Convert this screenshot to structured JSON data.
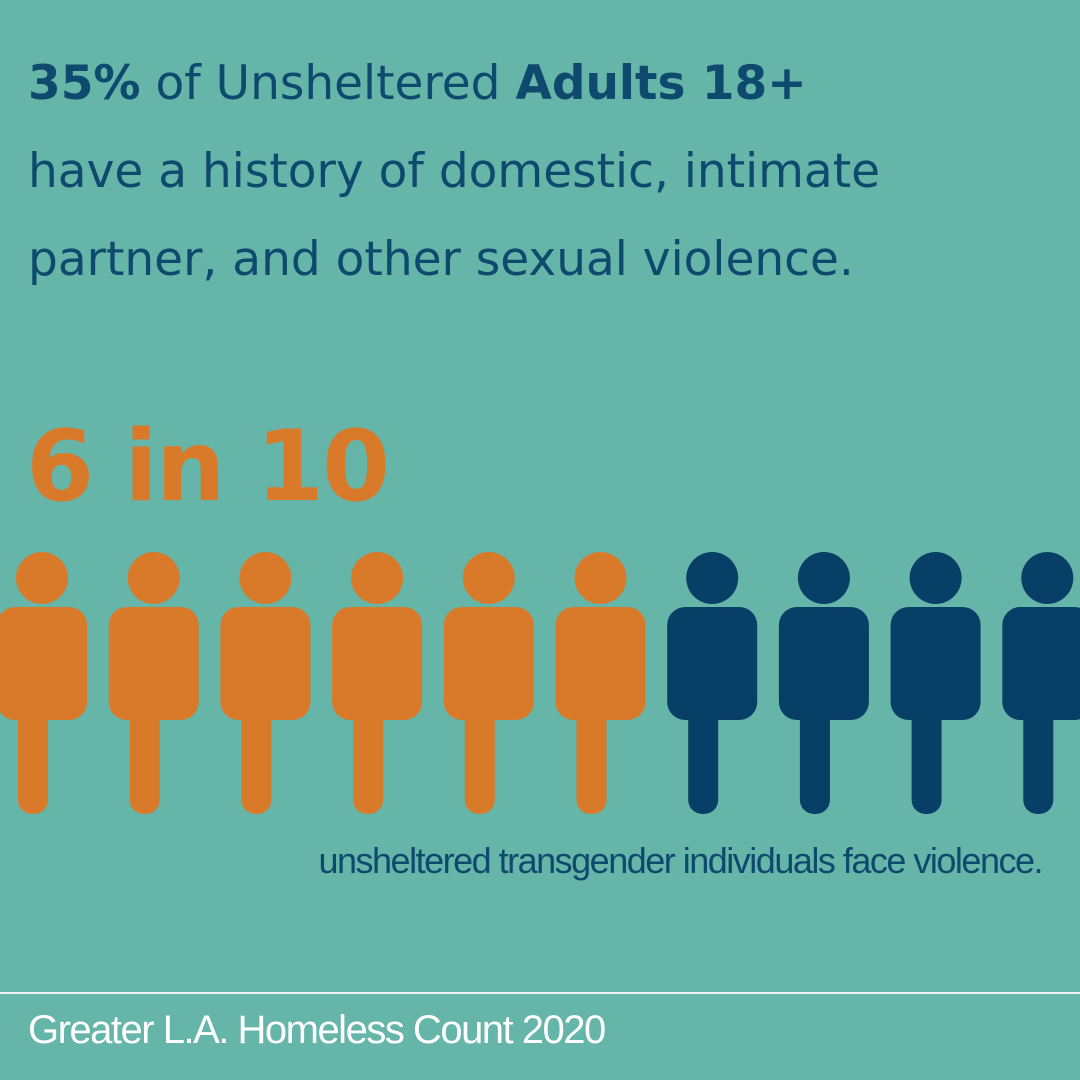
{
  "headline": {
    "lines": [
      [
        {
          "text": "35%",
          "bold": true
        },
        {
          "text": " of Unsheltered "
        },
        {
          "text": "Adults 18+",
          "bold": true
        }
      ],
      [
        {
          "text": "have a history of domestic, intimate"
        }
      ],
      [
        {
          "text": "partner, and other sexual violence."
        }
      ]
    ]
  },
  "pictogram": {
    "label": "6 in 10",
    "highlighted": 6,
    "total": 10,
    "colors": [
      "#d97a2b",
      "#073f66"
    ],
    "caption": "unsheltered transgender individuals face violence."
  },
  "footer": {
    "source": "Greater L.A. Homeless Count 2020"
  }
}
